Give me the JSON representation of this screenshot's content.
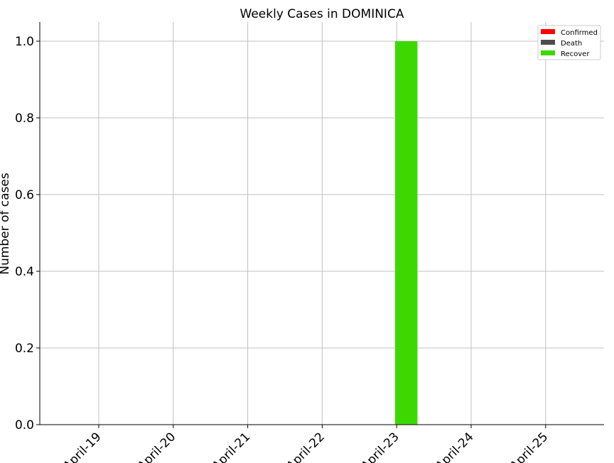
{
  "chart_data": {
    "type": "bar",
    "title": "Weekly Cases in DOMINICA",
    "xlabel": "",
    "ylabel": "Number of cases",
    "categories": [
      "April-19",
      "April-20",
      "April-21",
      "April-22",
      "April-23",
      "April-24",
      "April-25"
    ],
    "series": [
      {
        "name": "Confirmed",
        "color": "#ff0000",
        "values": [
          0,
          0,
          0,
          0,
          0,
          0,
          0
        ]
      },
      {
        "name": "Death",
        "color": "#4d4d4d",
        "values": [
          0,
          0,
          0,
          0,
          0,
          0,
          0
        ]
      },
      {
        "name": "Recover",
        "color": "#3cd900",
        "values": [
          0,
          0,
          0,
          0,
          1,
          0,
          0
        ]
      }
    ],
    "ylim": [
      0,
      1.05
    ],
    "yticks": [
      "0.0",
      "0.2",
      "0.4",
      "0.6",
      "0.8",
      "1.0"
    ],
    "grid": true,
    "legend_position": "top-right"
  }
}
